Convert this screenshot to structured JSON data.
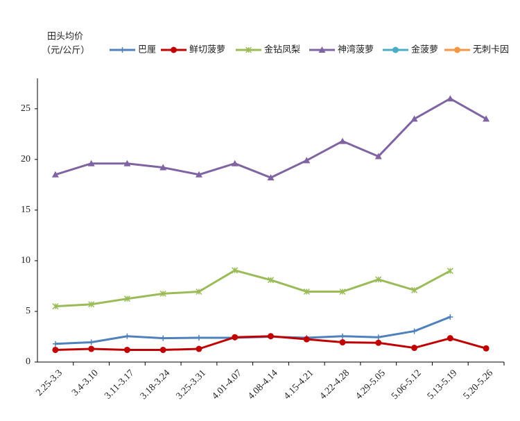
{
  "chart_data": {
    "type": "line",
    "y_label": [
      "田头均价",
      "（元/公斤）"
    ],
    "categories": [
      "2.25-3.3",
      "3.4-3.10",
      "3.11-3.17",
      "3.18-3.24",
      "3.25-3.31",
      "4.01-4.07",
      "4.08-4.14",
      "4.15-4.21",
      "4.22-4.28",
      "4.29-5.05",
      "5.06-5.12",
      "5.13-5.19",
      "5.20-5.26"
    ],
    "series": [
      {
        "name": "巴厘",
        "color": "#4f81bd",
        "marker": "plus",
        "values": [
          1.8,
          1.95,
          2.55,
          2.35,
          2.4,
          2.4,
          2.5,
          2.4,
          2.55,
          2.45,
          3.05,
          4.45,
          null
        ]
      },
      {
        "name": "鲜切菠萝",
        "color": "#c00000",
        "marker": "circle",
        "values": [
          1.2,
          1.3,
          1.2,
          1.2,
          1.3,
          2.45,
          2.55,
          2.25,
          1.95,
          1.9,
          1.4,
          2.35,
          1.35
        ]
      },
      {
        "name": "金钻凤梨",
        "color": "#9bbb59",
        "marker": "x",
        "values": [
          5.5,
          5.7,
          6.25,
          6.75,
          6.95,
          9.05,
          8.1,
          6.95,
          6.95,
          8.15,
          7.1,
          9.0,
          null
        ]
      },
      {
        "name": "神湾菠萝",
        "color": "#8064a2",
        "marker": "triangle",
        "values": [
          18.5,
          19.6,
          19.6,
          19.2,
          18.5,
          19.6,
          18.2,
          19.9,
          21.8,
          20.3,
          24.0,
          26.0,
          24.0
        ]
      },
      {
        "name": "金菠萝",
        "color": "#4bacc6",
        "marker": "circle",
        "values": [
          null,
          null,
          null,
          null,
          null,
          null,
          null,
          null,
          null,
          null,
          null,
          null,
          null
        ]
      },
      {
        "name": "无刺卡因",
        "color": "#f79646",
        "marker": "circle",
        "values": [
          null,
          null,
          null,
          null,
          null,
          null,
          null,
          null,
          null,
          null,
          null,
          null,
          null
        ]
      }
    ],
    "ylim": [
      0,
      28
    ],
    "yticks": [
      0,
      5,
      10,
      15,
      20,
      25
    ],
    "grid": false,
    "legend": "top"
  }
}
